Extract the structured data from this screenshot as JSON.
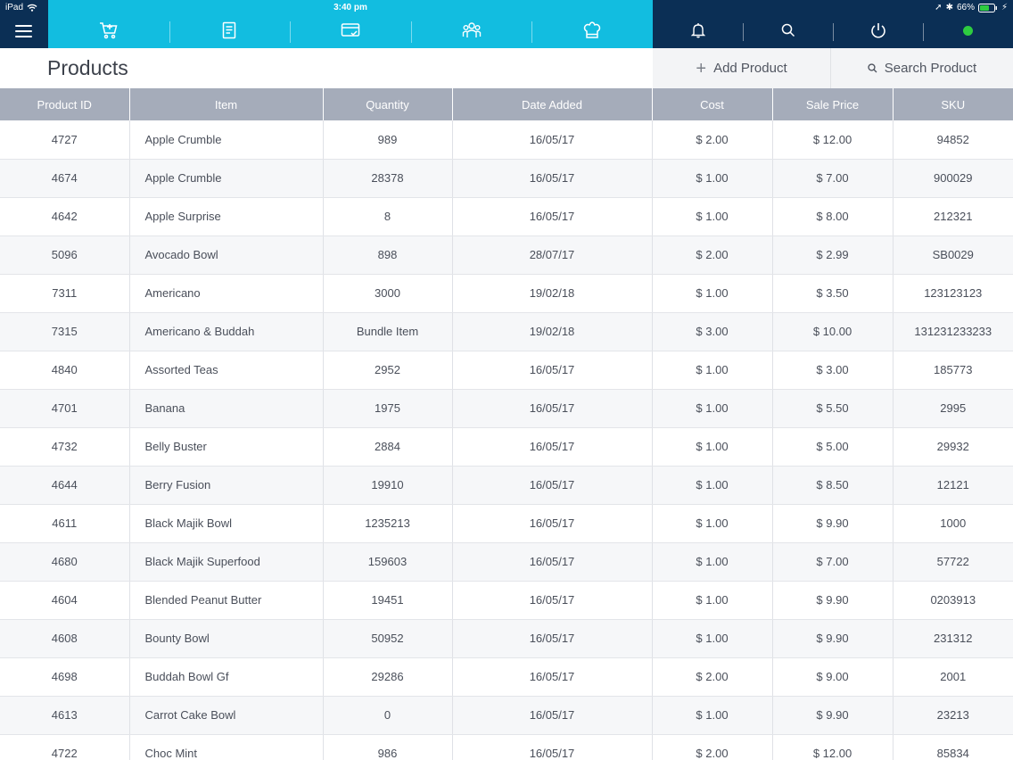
{
  "status_bar": {
    "device": "iPad",
    "time": "3:40 pm",
    "battery": "66%"
  },
  "nav": {
    "items": [
      {
        "name": "cart-icon"
      },
      {
        "name": "receipt-icon"
      },
      {
        "name": "payment-card-icon"
      },
      {
        "name": "customers-icon"
      },
      {
        "name": "chef-hat-icon"
      }
    ]
  },
  "tools": {
    "items": [
      {
        "name": "bell-icon"
      },
      {
        "name": "search-icon"
      },
      {
        "name": "power-icon"
      },
      {
        "name": "online-status-dot"
      }
    ],
    "online_color": "#2ecc40"
  },
  "header": {
    "title": "Products",
    "add_label": "Add Product",
    "search_label": "Search Product"
  },
  "colors": {
    "nav_bg": "#12bde0",
    "dark_bg": "#0b2f55",
    "table_header_bg": "#a5acba"
  },
  "table": {
    "columns": [
      "Product ID",
      "Item",
      "Quantity",
      "Date Added",
      "Cost",
      "Sale Price",
      "SKU"
    ],
    "rows": [
      [
        "4727",
        "Apple Crumble",
        "989",
        "16/05/17",
        "$ 2.00",
        "$ 12.00",
        "94852"
      ],
      [
        "4674",
        "Apple Crumble",
        "28378",
        "16/05/17",
        "$ 1.00",
        "$ 7.00",
        "900029"
      ],
      [
        "4642",
        "Apple Surprise",
        "8",
        "16/05/17",
        "$ 1.00",
        "$ 8.00",
        "212321"
      ],
      [
        "5096",
        "Avocado Bowl",
        "898",
        "28/07/17",
        "$ 2.00",
        "$ 2.99",
        "SB0029"
      ],
      [
        "7311",
        "Americano",
        "3000",
        "19/02/18",
        "$ 1.00",
        "$ 3.50",
        "123123123"
      ],
      [
        "7315",
        "Americano & Buddah",
        "Bundle Item",
        "19/02/18",
        "$ 3.00",
        "$ 10.00",
        "131231233233"
      ],
      [
        "4840",
        "Assorted Teas",
        "2952",
        "16/05/17",
        "$ 1.00",
        "$ 3.00",
        "185773"
      ],
      [
        "4701",
        "Banana",
        "1975",
        "16/05/17",
        "$ 1.00",
        "$ 5.50",
        "2995"
      ],
      [
        "4732",
        "Belly Buster",
        "2884",
        "16/05/17",
        "$ 1.00",
        "$ 5.00",
        "29932"
      ],
      [
        "4644",
        "Berry Fusion",
        "19910",
        "16/05/17",
        "$ 1.00",
        "$ 8.50",
        "12121"
      ],
      [
        "4611",
        "Black Majik Bowl",
        "1235213",
        "16/05/17",
        "$ 1.00",
        "$ 9.90",
        "1000"
      ],
      [
        "4680",
        "Black Majik Superfood",
        "159603",
        "16/05/17",
        "$ 1.00",
        "$ 7.00",
        "57722"
      ],
      [
        "4604",
        "Blended Peanut Butter",
        "19451",
        "16/05/17",
        "$ 1.00",
        "$ 9.90",
        "0203913"
      ],
      [
        "4608",
        "Bounty Bowl",
        "50952",
        "16/05/17",
        "$ 1.00",
        "$ 9.90",
        "231312"
      ],
      [
        "4698",
        "Buddah Bowl Gf",
        "29286",
        "16/05/17",
        "$ 2.00",
        "$ 9.00",
        "2001"
      ],
      [
        "4613",
        "Carrot Cake Bowl",
        "0",
        "16/05/17",
        "$ 1.00",
        "$ 9.90",
        "23213"
      ],
      [
        "4722",
        "Choc Mint",
        "986",
        "16/05/17",
        "$ 2.00",
        "$ 12.00",
        "85834"
      ]
    ]
  }
}
